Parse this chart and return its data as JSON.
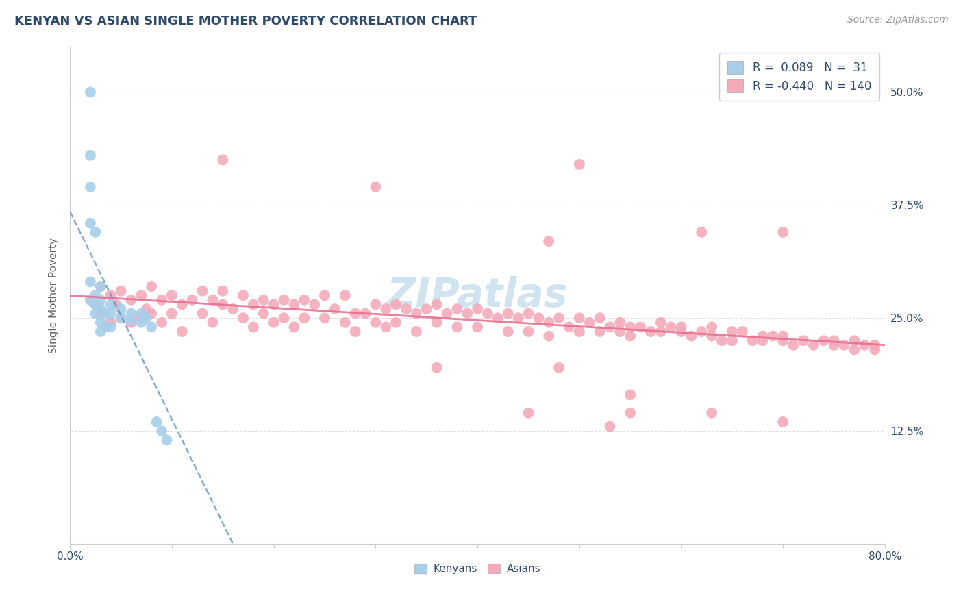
{
  "title": "KENYAN VS ASIAN SINGLE MOTHER POVERTY CORRELATION CHART",
  "source": "Source: ZipAtlas.com",
  "ylabel": "Single Mother Poverty",
  "xlim": [
    0.0,
    0.8
  ],
  "ylim": [
    0.0,
    0.55
  ],
  "xtick_labels": [
    "0.0%",
    "",
    "",
    "",
    "",
    "",
    "",
    "",
    "80.0%"
  ],
  "xtick_values": [
    0.0,
    0.1,
    0.2,
    0.3,
    0.4,
    0.5,
    0.6,
    0.7,
    0.8
  ],
  "ytick_values": [
    0.125,
    0.25,
    0.375,
    0.5
  ],
  "ytick_right_labels": [
    "12.5%",
    "25.0%",
    "37.5%",
    "50.0%"
  ],
  "kenyan_color": "#A8CFEA",
  "asian_color": "#F4AABA",
  "kenyan_line_color": "#5B8DB8",
  "asian_line_color": "#E87090",
  "kenyan_R": 0.089,
  "kenyan_N": 31,
  "asian_R": -0.44,
  "asian_N": 140,
  "title_color": "#2E4A6B",
  "source_color": "#999999",
  "axis_color": "#CCCCCC",
  "grid_color": "#E0E0E0",
  "watermark": "ZIPatlas",
  "watermark_color": "#D0E4F0",
  "legend_label_kenyan": "Kenyans",
  "legend_label_asian": "Asians",
  "kenyan_x": [
    0.02,
    0.02,
    0.02,
    0.02,
    0.02,
    0.02,
    0.025,
    0.025,
    0.025,
    0.025,
    0.03,
    0.03,
    0.03,
    0.03,
    0.03,
    0.035,
    0.035,
    0.04,
    0.04,
    0.04,
    0.05,
    0.05,
    0.06,
    0.06,
    0.07,
    0.07,
    0.075,
    0.08,
    0.085,
    0.09,
    0.095
  ],
  "kenyan_y": [
    0.5,
    0.43,
    0.395,
    0.355,
    0.29,
    0.27,
    0.345,
    0.275,
    0.265,
    0.255,
    0.285,
    0.27,
    0.26,
    0.245,
    0.235,
    0.255,
    0.24,
    0.265,
    0.255,
    0.24,
    0.26,
    0.25,
    0.255,
    0.248,
    0.255,
    0.245,
    0.25,
    0.24,
    0.135,
    0.125,
    0.115
  ],
  "asian_x": [
    0.02,
    0.025,
    0.03,
    0.03,
    0.04,
    0.04,
    0.045,
    0.05,
    0.05,
    0.06,
    0.06,
    0.07,
    0.07,
    0.075,
    0.08,
    0.08,
    0.09,
    0.09,
    0.1,
    0.1,
    0.11,
    0.11,
    0.12,
    0.13,
    0.13,
    0.14,
    0.14,
    0.15,
    0.15,
    0.16,
    0.17,
    0.17,
    0.18,
    0.18,
    0.19,
    0.19,
    0.2,
    0.2,
    0.21,
    0.21,
    0.22,
    0.22,
    0.23,
    0.23,
    0.24,
    0.25,
    0.25,
    0.26,
    0.27,
    0.27,
    0.28,
    0.28,
    0.29,
    0.3,
    0.3,
    0.31,
    0.31,
    0.32,
    0.32,
    0.33,
    0.34,
    0.34,
    0.35,
    0.36,
    0.36,
    0.37,
    0.38,
    0.38,
    0.39,
    0.4,
    0.4,
    0.41,
    0.42,
    0.43,
    0.43,
    0.44,
    0.45,
    0.45,
    0.46,
    0.47,
    0.47,
    0.48,
    0.49,
    0.5,
    0.5,
    0.51,
    0.52,
    0.52,
    0.53,
    0.54,
    0.54,
    0.55,
    0.55,
    0.56,
    0.57,
    0.58,
    0.58,
    0.59,
    0.6,
    0.6,
    0.61,
    0.62,
    0.63,
    0.63,
    0.64,
    0.65,
    0.65,
    0.66,
    0.67,
    0.68,
    0.68,
    0.69,
    0.7,
    0.7,
    0.71,
    0.72,
    0.73,
    0.74,
    0.75,
    0.75,
    0.76,
    0.77,
    0.77,
    0.78,
    0.79,
    0.79,
    0.15,
    0.3,
    0.5,
    0.55,
    0.47,
    0.62,
    0.7,
    0.48,
    0.36,
    0.55,
    0.63,
    0.7,
    0.45,
    0.53
  ],
  "asian_y": [
    0.27,
    0.265,
    0.285,
    0.255,
    0.275,
    0.245,
    0.265,
    0.28,
    0.25,
    0.27,
    0.245,
    0.275,
    0.25,
    0.26,
    0.285,
    0.255,
    0.27,
    0.245,
    0.275,
    0.255,
    0.265,
    0.235,
    0.27,
    0.28,
    0.255,
    0.27,
    0.245,
    0.265,
    0.28,
    0.26,
    0.275,
    0.25,
    0.265,
    0.24,
    0.27,
    0.255,
    0.265,
    0.245,
    0.27,
    0.25,
    0.265,
    0.24,
    0.27,
    0.25,
    0.265,
    0.275,
    0.25,
    0.26,
    0.275,
    0.245,
    0.255,
    0.235,
    0.255,
    0.265,
    0.245,
    0.26,
    0.24,
    0.265,
    0.245,
    0.26,
    0.255,
    0.235,
    0.26,
    0.265,
    0.245,
    0.255,
    0.26,
    0.24,
    0.255,
    0.26,
    0.24,
    0.255,
    0.25,
    0.255,
    0.235,
    0.25,
    0.255,
    0.235,
    0.25,
    0.245,
    0.23,
    0.25,
    0.24,
    0.25,
    0.235,
    0.245,
    0.235,
    0.25,
    0.24,
    0.245,
    0.235,
    0.24,
    0.23,
    0.24,
    0.235,
    0.245,
    0.235,
    0.24,
    0.235,
    0.24,
    0.23,
    0.235,
    0.23,
    0.24,
    0.225,
    0.235,
    0.225,
    0.235,
    0.225,
    0.23,
    0.225,
    0.23,
    0.225,
    0.23,
    0.22,
    0.225,
    0.22,
    0.225,
    0.22,
    0.225,
    0.22,
    0.225,
    0.215,
    0.22,
    0.215,
    0.22,
    0.425,
    0.395,
    0.42,
    0.165,
    0.335,
    0.345,
    0.345,
    0.195,
    0.195,
    0.145,
    0.145,
    0.135,
    0.145,
    0.13
  ]
}
